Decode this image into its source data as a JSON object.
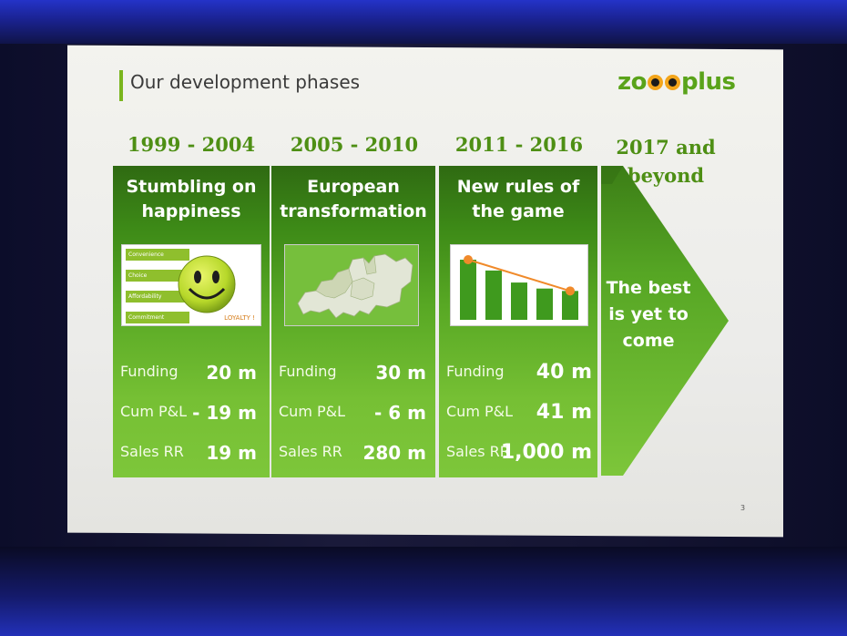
{
  "slide": {
    "title": "Our development phases",
    "logo": {
      "left": "zo",
      "right": "plus"
    },
    "page_number": "3"
  },
  "phases": [
    {
      "years": "1999 - 2004",
      "heading": "Stumbling on happiness",
      "image": {
        "type": "smiley",
        "list_items": [
          "Convenience",
          "Choice",
          "Affordability",
          "Commitment"
        ],
        "tag": "LOYALTY !"
      },
      "metrics": [
        {
          "label": "Funding",
          "value": "20 m"
        },
        {
          "label": "Cum P&L",
          "value": "- 19 m"
        },
        {
          "label": "Sales RR",
          "value": "19 m"
        }
      ]
    },
    {
      "years": "2005 - 2010",
      "heading": "European transformation",
      "image": {
        "type": "europe-map"
      },
      "metrics": [
        {
          "label": "Funding",
          "value": "30 m"
        },
        {
          "label": "Cum P&L",
          "value": "- 6 m"
        },
        {
          "label": "Sales RR",
          "value": "280 m"
        }
      ]
    },
    {
      "years": "2011 - 2016",
      "heading": "New rules of the game",
      "image": {
        "type": "declining-bars",
        "bars": [
          10,
          8.2,
          6.2,
          5.2,
          4.8
        ]
      },
      "metrics": [
        {
          "label": "Funding",
          "value": "40 m"
        },
        {
          "label": "Cum P&L",
          "value": "41 m"
        },
        {
          "label": "Sales RR",
          "value": "1,000 m"
        }
      ]
    }
  ],
  "future": {
    "years": "2017 and beyond",
    "text": "The best is yet to come"
  },
  "colors": {
    "brand_green": "#5aa31a",
    "dark_green": "#2f6a12",
    "light_green": "#7dc63a",
    "logo_eye": "#f3a51b",
    "chart_dot": "#f08a2a"
  }
}
